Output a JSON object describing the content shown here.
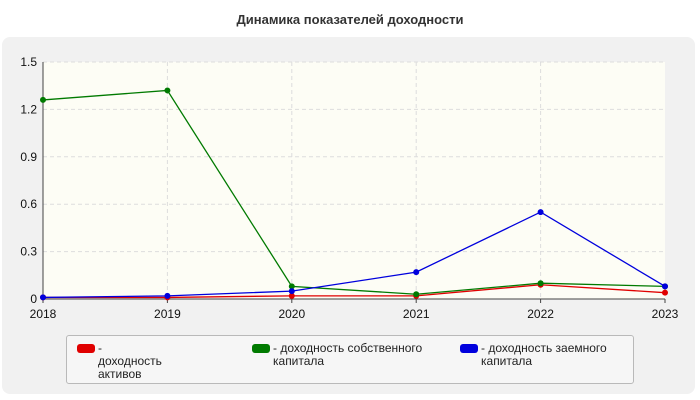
{
  "chart_data": {
    "type": "line",
    "title": "Динамика показателей доходности",
    "x": [
      "2018",
      "2019",
      "2020",
      "2021",
      "2022",
      "2023"
    ],
    "y_ticks": [
      "0",
      "0.3",
      "0.6",
      "0.9",
      "1.2",
      "1.5"
    ],
    "ylim": [
      0,
      1.5
    ],
    "grid": true,
    "legend_position": "bottom",
    "series": [
      {
        "name": "- доходность активов",
        "color": "#e00000",
        "values": [
          0.01,
          0.01,
          0.02,
          0.02,
          0.09,
          0.04
        ]
      },
      {
        "name": "- доходность собственного капитала",
        "color": "#007a00",
        "values": [
          1.26,
          1.32,
          0.08,
          0.03,
          0.1,
          0.08
        ]
      },
      {
        "name": "- доходность заемного капитала",
        "color": "#0000dd",
        "values": [
          0.01,
          0.02,
          0.05,
          0.17,
          0.55,
          0.08
        ]
      }
    ]
  }
}
